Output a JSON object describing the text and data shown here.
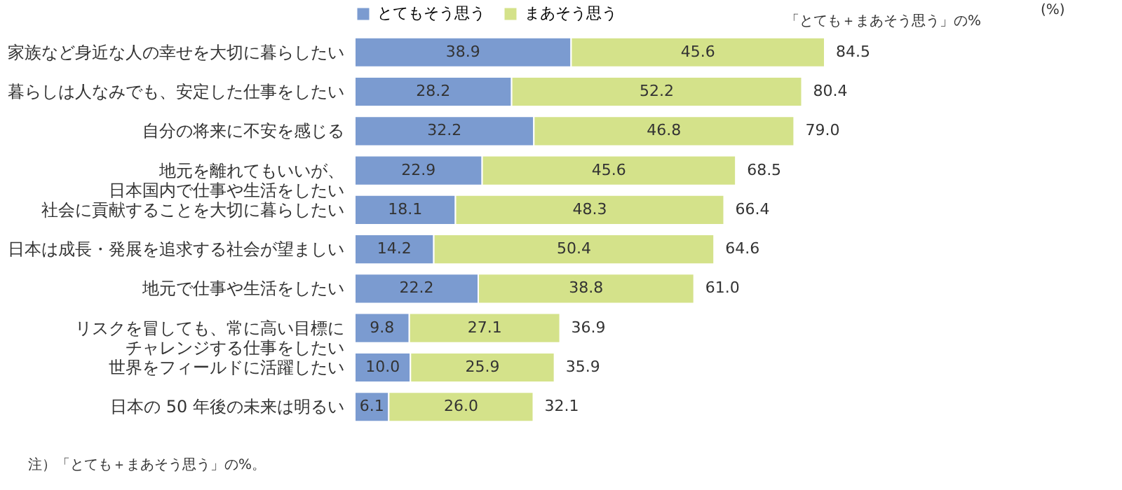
{
  "chart_data": {
    "type": "bar",
    "orientation": "horizontal",
    "stacked": true,
    "legend": "top",
    "categories": [
      "家族など身近な人の幸せを大切に暮らしたい",
      "暮らしは人なみでも、安定した仕事をしたい",
      "自分の将来に不安を感じる",
      "地元を離れてもいいが、日本国内で仕事や生活をしたい",
      "社会に貢献することを大切に暮らしたい",
      "日本は成長・発展を追求する社会が望ましい",
      "地元で仕事や生活をしたい",
      "リスクを冒しても、常に高い目標にチャレンジする仕事をしたい",
      "世界をフィールドに活躍したい",
      "日本の 50 年後の未来は明るい"
    ],
    "series": [
      {
        "name": "とてもそう思う",
        "color": "#7b9bd0",
        "values": [
          38.9,
          28.2,
          32.2,
          22.9,
          18.1,
          14.2,
          22.2,
          9.8,
          10.0,
          6.1
        ],
        "value_labels": [
          "38.9",
          "28.2",
          "32.2",
          "22.9",
          "18.1",
          "14.2",
          "22.2",
          "9.8",
          "10.0",
          "6.1"
        ]
      },
      {
        "name": "まあそう思う",
        "color": "#d4e28a",
        "values": [
          45.6,
          52.2,
          46.8,
          45.6,
          48.3,
          50.4,
          38.8,
          27.1,
          25.9,
          26.0
        ],
        "value_labels": [
          "45.6",
          "52.2",
          "46.8",
          "45.6",
          "48.3",
          "50.4",
          "38.8",
          "27.1",
          "25.9",
          "26.0"
        ]
      }
    ],
    "totals": [
      "84.5",
      "80.4",
      "79.0",
      "68.5",
      "66.4",
      "64.6",
      "61.0",
      "36.9",
      "35.9",
      "32.1"
    ],
    "annotations": [
      "(%)",
      "「とても＋まあそう思う」の%",
      "注）「とても＋まあそう思う」の%。"
    ]
  }
}
